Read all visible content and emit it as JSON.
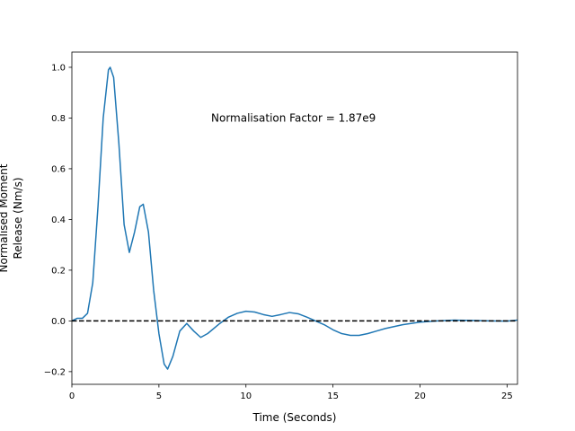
{
  "chart_data": {
    "type": "line",
    "annotation": "Normalisation Factor = 1.87e9",
    "annotation_at": [
      8.0,
      0.8
    ],
    "xlabel": "Time (Seconds)",
    "ylabel": [
      "Normalised Moment",
      "Release (Nm/s)"
    ],
    "color": "#1f77b4",
    "hline": 0,
    "x": [
      0,
      0.3,
      0.6,
      0.9,
      1.2,
      1.5,
      1.8,
      2.1,
      2.2,
      2.4,
      2.7,
      3.0,
      3.3,
      3.6,
      3.9,
      4.1,
      4.4,
      4.7,
      5.0,
      5.3,
      5.5,
      5.8,
      6.2,
      6.6,
      7.0,
      7.4,
      7.8,
      8.5,
      9.0,
      9.5,
      10.0,
      10.5,
      11.0,
      11.5,
      12.0,
      12.5,
      13.0,
      13.5,
      14.0,
      14.5,
      15.0,
      15.5,
      16.0,
      16.5,
      17.0,
      17.5,
      18.0,
      19.0,
      20.0,
      21.0,
      22.0,
      23.0,
      24.0,
      25.0,
      25.6
    ],
    "values": [
      0,
      0.01,
      0.01,
      0.03,
      0.15,
      0.45,
      0.8,
      0.99,
      1.0,
      0.96,
      0.7,
      0.38,
      0.27,
      0.35,
      0.45,
      0.46,
      0.35,
      0.12,
      -0.05,
      -0.17,
      -0.19,
      -0.14,
      -0.04,
      -0.01,
      -0.04,
      -0.065,
      -0.05,
      -0.01,
      0.015,
      0.03,
      0.038,
      0.035,
      0.025,
      0.018,
      0.025,
      0.033,
      0.028,
      0.015,
      0.0,
      -0.015,
      -0.035,
      -0.05,
      -0.057,
      -0.057,
      -0.05,
      -0.04,
      -0.03,
      -0.015,
      -0.005,
      0.0,
      0.003,
      0.002,
      0.0,
      -0.001,
      0.003
    ],
    "xlim": [
      0,
      25.6
    ],
    "ylim": [
      -0.25,
      1.06
    ],
    "xticks": [
      0,
      5,
      10,
      15,
      20,
      25
    ],
    "yticks": [
      {
        "value": -0.2,
        "label": "−0.2"
      },
      {
        "value": 0,
        "label": "0.0"
      },
      0.2,
      0.4,
      0.6,
      0.8,
      {
        "value": 1.0,
        "label": "1.0"
      }
    ]
  }
}
